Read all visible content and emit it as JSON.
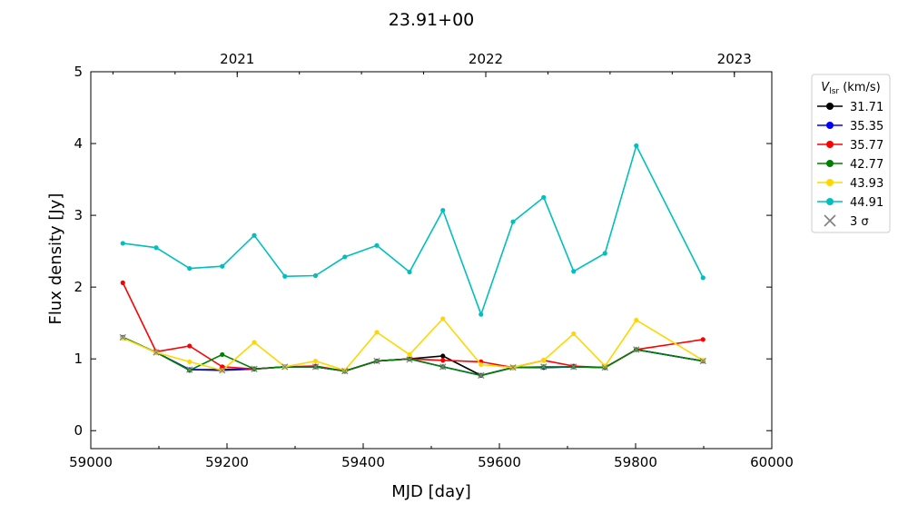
{
  "chart_data": {
    "type": "line",
    "title": "23.91+00",
    "xlabel": "MJD [day]",
    "ylabel": "Flux density [Jy]",
    "xlim": [
      59000,
      60000
    ],
    "ylim": [
      -0.25,
      5
    ],
    "x_ticks": [
      59000,
      59200,
      59400,
      59600,
      59800,
      60000
    ],
    "y_ticks": [
      0,
      1,
      2,
      3,
      4,
      5
    ],
    "top_axis": {
      "ticks": [
        {
          "mjd": 59215,
          "label": "2021"
        },
        {
          "mjd": 59580,
          "label": "2022"
        },
        {
          "mjd": 59945,
          "label": "2023"
        }
      ]
    },
    "legend": {
      "title_main": "V",
      "title_sub": "lsr",
      "title_unit": " (km/s)",
      "placement": "outside-right",
      "sigma_label": "3 σ"
    },
    "x": [
      59047,
      59096,
      59145,
      59193,
      59240,
      59285,
      59330,
      59373,
      59420,
      59468,
      59517,
      59573,
      59620,
      59665,
      59709,
      59755,
      59801,
      59899
    ],
    "series": [
      {
        "name": "31.71",
        "color": "#000000",
        "values": [
          1.3,
          1.09,
          0.85,
          0.85,
          0.86,
          0.89,
          0.89,
          0.83,
          0.97,
          1.0,
          1.04,
          0.77,
          0.88,
          0.88,
          0.89,
          0.88,
          1.13,
          0.97
        ]
      },
      {
        "name": "35.35",
        "color": "#0000ff",
        "values": [
          1.3,
          1.09,
          0.85,
          0.84,
          0.86,
          0.89,
          0.89,
          0.83,
          0.97,
          1.0,
          0.89,
          0.77,
          0.88,
          0.88,
          0.89,
          0.88,
          1.13,
          0.97
        ]
      },
      {
        "name": "35.77",
        "color": "#ff0000",
        "values": [
          2.06,
          1.1,
          1.18,
          0.89,
          0.86,
          0.89,
          0.9,
          0.83,
          0.97,
          1.0,
          0.98,
          0.96,
          0.88,
          0.98,
          0.9,
          0.88,
          1.13,
          1.27
        ]
      },
      {
        "name": "42.77",
        "color": "#008000",
        "values": [
          1.3,
          1.09,
          0.84,
          1.06,
          0.86,
          0.89,
          0.89,
          0.83,
          0.97,
          1.0,
          0.89,
          0.77,
          0.88,
          0.89,
          0.89,
          0.88,
          1.13,
          0.97
        ]
      },
      {
        "name": "43.93",
        "color": "#ffd700",
        "values": [
          1.29,
          1.09,
          0.96,
          0.84,
          1.23,
          0.89,
          0.97,
          0.84,
          1.37,
          1.06,
          1.56,
          0.92,
          0.88,
          0.98,
          1.35,
          0.9,
          1.54,
          0.98
        ]
      },
      {
        "name": "44.91",
        "color": "#00bfbf",
        "values": [
          2.61,
          2.55,
          2.26,
          2.29,
          2.72,
          2.15,
          2.16,
          2.42,
          2.58,
          2.21,
          3.07,
          1.62,
          2.91,
          3.25,
          2.22,
          2.47,
          3.97,
          2.13
        ]
      }
    ],
    "threshold_3sigma": [
      1.3,
      1.09,
      0.85,
      0.84,
      0.86,
      0.89,
      0.89,
      0.83,
      0.97,
      0.99,
      0.89,
      0.77,
      0.88,
      0.89,
      0.89,
      0.88,
      1.13,
      0.97
    ]
  }
}
